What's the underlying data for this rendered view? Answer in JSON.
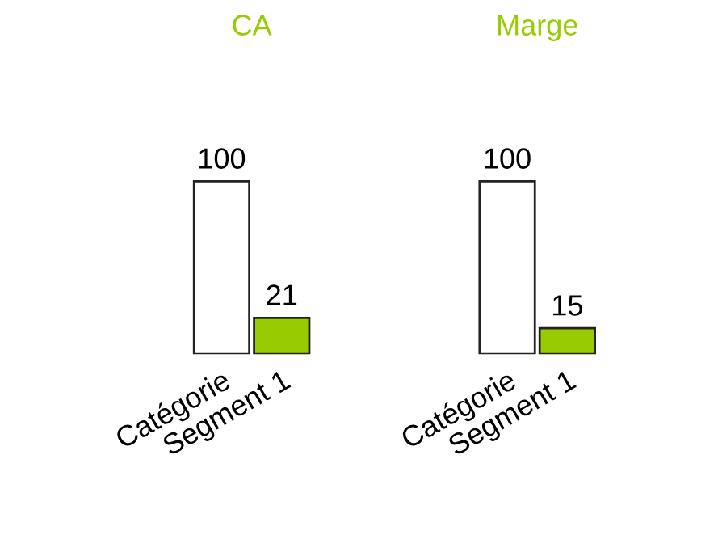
{
  "chart_data": [
    {
      "type": "bar",
      "title": "CA",
      "categories": [
        "Catégorie",
        "Segment 1"
      ],
      "values": [
        100,
        21
      ],
      "colors": [
        "#ffffff",
        "#99cc00"
      ],
      "data_labels": true
    },
    {
      "type": "bar",
      "title": "Marge",
      "categories": [
        "Catégorie",
        "Segment 1"
      ],
      "values": [
        100,
        15
      ],
      "colors": [
        "#ffffff",
        "#99cc00"
      ],
      "data_labels": true
    }
  ]
}
